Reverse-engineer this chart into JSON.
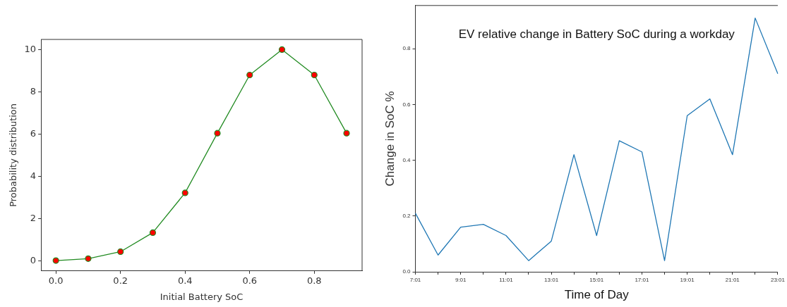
{
  "chart_data": [
    {
      "type": "line",
      "xlabel": "Initial Battery SoC",
      "ylabel": "Probability distribution",
      "x": [
        0,
        0.1,
        0.2,
        0.3,
        0.4,
        0.5,
        0.6,
        0.7,
        0.8,
        0.9
      ],
      "series": [
        {
          "color": "#228b22",
          "colors": [
            "#ff0000",
            "#ff0000",
            "#ff0000",
            "#ff0000",
            "#ff0000",
            "#ff0000",
            "#ff0000",
            "#ff0000",
            "#ff0000",
            "#ff0000"
          ],
          "values": [
            0.03,
            0.12,
            0.45,
            1.35,
            3.23,
            6.05,
            8.8,
            10.0,
            8.8,
            6.05
          ]
        }
      ],
      "xlim": [
        -0.046,
        0.948
      ],
      "ylim": [
        -0.46,
        10.48
      ],
      "xticks": [
        {
          "value": 0,
          "label": "0.0"
        },
        0.2,
        0.4,
        0.6,
        0.8
      ],
      "yticks": [
        0,
        2,
        4,
        6,
        8,
        10
      ],
      "marker": "circle",
      "grid": false,
      "legend": false
    },
    {
      "type": "line",
      "title": "EV relative change in Battery SoC during a workday",
      "xlabel": "Time of Day",
      "ylabel": "Change in SoC %",
      "categories": [
        "7:01",
        null,
        "9:01",
        null,
        "11:01",
        null,
        "13:01",
        null,
        "15:01",
        null,
        "17:01",
        null,
        "19:01",
        null,
        "21:01",
        null,
        "23:01"
      ],
      "series": [
        {
          "color": "#1f77b4",
          "values": [
            0.21,
            0.06,
            0.16,
            0.17,
            0.13,
            0.04,
            0.11,
            0.42,
            0.13,
            0.47,
            0.43,
            0.04,
            0.56,
            0.62,
            0.42,
            0.91,
            0.71
          ]
        }
      ],
      "ylim": [
        0,
        0.955
      ],
      "yticks": [
        {
          "value": 0,
          "label": "0.0"
        },
        0.2,
        0.4,
        0.6,
        0.8
      ],
      "marker": "none",
      "grid": false,
      "legend": false
    }
  ]
}
